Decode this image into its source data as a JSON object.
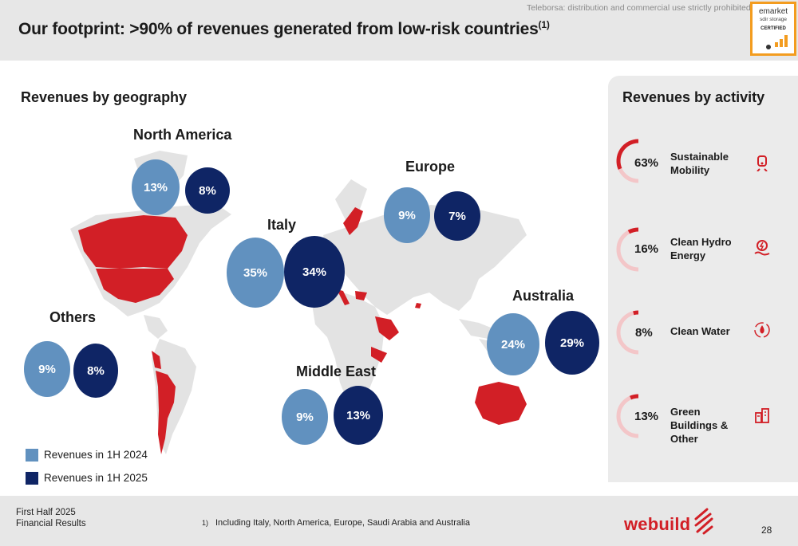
{
  "header": {
    "title": "Our footprint: >90% of revenues generated from low-risk countries",
    "title_sup": "(1)",
    "watermark": "Teleborsa: distribution and commercial use strictly prohibited",
    "badge": {
      "line1": "emarket",
      "line2": "sdir storage",
      "line3": "CERTIFIED"
    }
  },
  "geography": {
    "title": "Revenues by geography",
    "regions": [
      {
        "name": "North America",
        "h1_2024": "13%",
        "h1_2025": "8%"
      },
      {
        "name": "Europe",
        "h1_2024": "9%",
        "h1_2025": "7%"
      },
      {
        "name": "Italy",
        "h1_2024": "35%",
        "h1_2025": "34%"
      },
      {
        "name": "Australia",
        "h1_2024": "24%",
        "h1_2025": "29%"
      },
      {
        "name": "Others",
        "h1_2024": "9%",
        "h1_2025": "8%"
      },
      {
        "name": "Middle East",
        "h1_2024": "9%",
        "h1_2025": "13%"
      }
    ],
    "legend": [
      "Revenues in 1H 2024",
      "Revenues in 1H 2025"
    ]
  },
  "activity": {
    "title": "Revenues by activity",
    "items": [
      {
        "pct": "63%",
        "value": 63,
        "label": "Sustainable Mobility",
        "icon": "train-icon"
      },
      {
        "pct": "16%",
        "value": 16,
        "label": "Clean Hydro Energy",
        "icon": "hydro-energy-icon"
      },
      {
        "pct": "8%",
        "value": 8,
        "label": "Clean Water",
        "icon": "water-drop-icon"
      },
      {
        "pct": "13%",
        "value": 13,
        "label": "Green Buildings & Other",
        "icon": "buildings-icon"
      }
    ]
  },
  "footer": {
    "line1": "First Half 2025",
    "line2": "Financial Results",
    "note_num": "1)",
    "note": "Including Italy, North America, Europe, Saudi Arabia and Australia",
    "brand": "webuild",
    "page": "28"
  },
  "colors": {
    "accent_red": "#d21f26",
    "h1_2024": "#6191bf",
    "h1_2025": "#0f2565",
    "map_land": "#e3e3e3"
  }
}
